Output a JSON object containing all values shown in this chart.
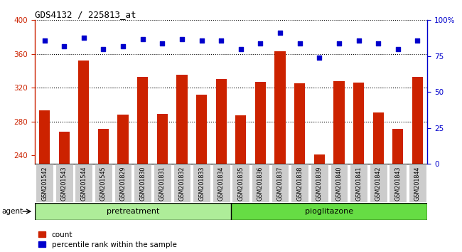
{
  "title": "GDS4132 / 225813_at",
  "samples": [
    "GSM201542",
    "GSM201543",
    "GSM201544",
    "GSM201545",
    "GSM201829",
    "GSM201830",
    "GSM201831",
    "GSM201832",
    "GSM201833",
    "GSM201834",
    "GSM201835",
    "GSM201836",
    "GSM201837",
    "GSM201838",
    "GSM201839",
    "GSM201840",
    "GSM201841",
    "GSM201842",
    "GSM201843",
    "GSM201844"
  ],
  "counts": [
    293,
    268,
    352,
    271,
    288,
    333,
    289,
    335,
    312,
    330,
    287,
    327,
    363,
    325,
    241,
    328,
    326,
    291,
    271,
    333
  ],
  "percentiles": [
    86,
    82,
    88,
    80,
    82,
    87,
    84,
    87,
    86,
    86,
    80,
    84,
    91,
    84,
    74,
    84,
    86,
    84,
    80,
    86
  ],
  "pretreatment_count": 10,
  "pioglitazone_count": 10,
  "ylim_left": [
    230,
    400
  ],
  "ylim_right": [
    0,
    100
  ],
  "yticks_left": [
    240,
    280,
    320,
    360,
    400
  ],
  "yticks_right": [
    0,
    25,
    50,
    75,
    100
  ],
  "bar_color": "#cc2200",
  "dot_color": "#0000cc",
  "pretreat_color": "#aeed99",
  "pioglitazone_color": "#66dd44",
  "grid_color": "#000000",
  "legend_count_label": "count",
  "legend_pct_label": "percentile rank within the sample"
}
